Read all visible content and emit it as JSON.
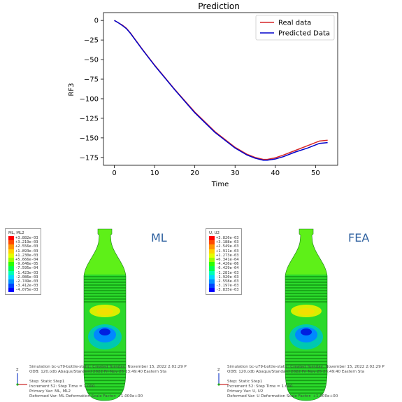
{
  "chart_data": {
    "type": "line",
    "title": "Prediction",
    "xlabel": "Time",
    "ylabel": "RF3",
    "xlim": [
      -2.7,
      55.5
    ],
    "ylim": [
      -185,
      10
    ],
    "xticks": [
      0,
      10,
      20,
      30,
      40,
      50
    ],
    "yticks": [
      0,
      -25,
      -50,
      -75,
      -100,
      -125,
      -150,
      -175
    ],
    "grid": false,
    "legend_position": "top-right",
    "series": [
      {
        "name": "Real data",
        "color": "#d62728",
        "x": [
          0,
          1,
          2,
          3,
          4,
          5,
          7,
          10,
          15,
          20,
          25,
          30,
          33,
          35,
          37,
          38,
          40,
          42,
          45,
          48,
          51,
          53
        ],
        "y": [
          0,
          -3,
          -6,
          -10,
          -16,
          -23,
          -37,
          -57,
          -88,
          -117,
          -142,
          -162,
          -171,
          -175,
          -177.5,
          -177.5,
          -175.5,
          -172,
          -166,
          -160,
          -154,
          -153
        ]
      },
      {
        "name": "Predicted Data",
        "color": "#0000cc",
        "x": [
          0,
          1,
          2,
          3,
          4,
          5,
          7,
          10,
          15,
          20,
          25,
          30,
          33,
          35,
          37,
          38,
          40,
          42,
          45,
          48,
          51,
          53
        ],
        "y": [
          0,
          -3,
          -6.5,
          -10.5,
          -16.5,
          -23.5,
          -37.5,
          -57.5,
          -88.5,
          -118,
          -143,
          -163,
          -172,
          -176,
          -178.5,
          -178.5,
          -177,
          -174,
          -168,
          -163,
          -157,
          -156
        ]
      }
    ]
  },
  "panels": {
    "ml": {
      "label": "ML",
      "legend_title": "ML, ML2",
      "legend_values": [
        "+3.882e-03",
        "+3.219e-03",
        "+2.556e-03",
        "+1.893e-03",
        "+1.230e-03",
        "+5.666e-04",
        "-9.646e-05",
        "-7.595e-04",
        "-1.423e-03",
        "-2.086e-03",
        "-2.749e-03",
        "-3.412e-03",
        "-4.075e-03"
      ],
      "info_line1": "Simulation bc-u79-bottle-static: Created Tuesday, November 15, 2022 2:02:29 P",
      "info_line2": "ODB: 120.odb    Abaqus/Standard 2022    Fri Nov 25 23:49:40 Eastern Sta",
      "info_line3": "Step: Static Step1",
      "info_line4": "Increment      52: Step Time =    1.000",
      "info_line5": "Primary Var: ML, ML2",
      "info_line6": "Deformed Var: ML   Deformation Scale Factor: +1.000e+00"
    },
    "fea": {
      "label": "FEA",
      "legend_title": "U, U2",
      "legend_values": [
        "+3.826e-03",
        "+3.188e-03",
        "+2.549e-03",
        "+1.911e-03",
        "+1.273e-03",
        "+6.341e-04",
        "-4.426e-06",
        "-6.429e-04",
        "-1.281e-03",
        "-1.920e-03",
        "-2.558e-03",
        "-3.197e-03",
        "-3.835e-03"
      ],
      "info_line1": "Simulation bc-u79-bottle-static: Created Tuesday, November 15, 2022 2:02:29 P",
      "info_line2": "ODB: 120.odb    Abaqus/Standard 2022    Fri Nov 25 23:49:40 Eastern Sta",
      "info_line3": "Step: Static Step1",
      "info_line4": "Increment      52: Step Time =    1.000",
      "info_line5": "Primary Var: U, U2",
      "info_line6": "Deformed Var: U   Deformation Scale Factor: +1.000e+00"
    }
  },
  "contour_colors": [
    "#ff0000",
    "#ff4a00",
    "#ff9400",
    "#ffd300",
    "#e3ff00",
    "#99ff00",
    "#2bff00",
    "#00ff4f",
    "#00ffb5",
    "#00d8ff",
    "#0090ff",
    "#0046ff",
    "#0000ff"
  ]
}
